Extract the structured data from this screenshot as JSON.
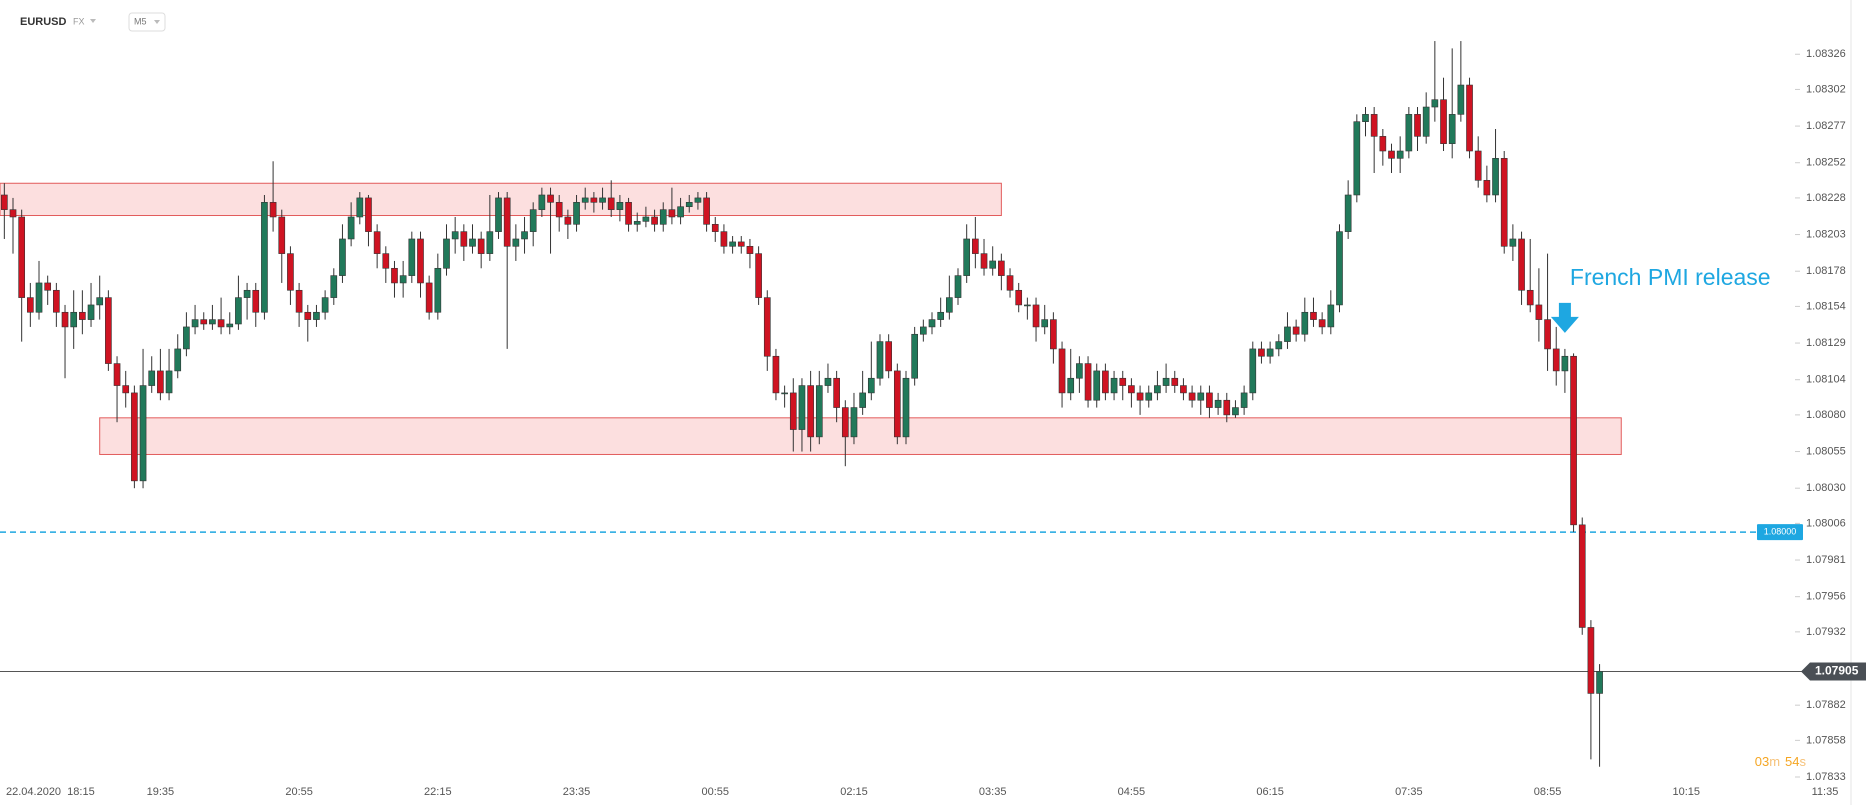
{
  "chart_data": {
    "type": "candlestick",
    "symbol": "EURUSD",
    "market": "FX",
    "interval": "M5",
    "annotation": "French PMI release",
    "annotation_index": 180,
    "countdown": [
      "03",
      "m",
      "54",
      "s"
    ],
    "up_color": "#21795a",
    "down_color": "#cf1322",
    "ylim": [
      1.07833,
      1.08363
    ],
    "xlim": [
      -0.5,
      213
    ],
    "yticks": [
      1.08326,
      1.08302,
      1.08277,
      1.08252,
      1.08228,
      1.08203,
      1.08178,
      1.08154,
      1.08129,
      1.08104,
      {
        "value": 1.0808,
        "label": "1.08080"
      },
      1.08055,
      {
        "value": 1.0803,
        "label": "1.08030"
      },
      1.08006,
      1.07981,
      1.07956,
      1.07932,
      1.07882,
      1.07858,
      1.07833
    ],
    "xticks": [
      {
        "value": 2,
        "label": "22.04.2020  18:15"
      },
      {
        "value": 18,
        "label": "19:35"
      },
      {
        "value": 34,
        "label": "20:55"
      },
      {
        "value": 50,
        "label": "22:15"
      },
      {
        "value": 66,
        "label": "23:35"
      },
      {
        "value": 82,
        "label": "00:55"
      },
      {
        "value": 98,
        "label": "02:15"
      },
      {
        "value": 114,
        "label": "03:35"
      },
      {
        "value": 130,
        "label": "04:55"
      },
      {
        "value": 146,
        "label": "06:15"
      },
      {
        "value": 162,
        "label": "07:35"
      },
      {
        "value": 178,
        "label": "08:55"
      },
      {
        "value": 194,
        "label": "10:15"
      },
      {
        "value": 210,
        "label": "11:35"
      }
    ],
    "price_line": {
      "value": 1.07905,
      "label": "1.07905"
    },
    "level_line": {
      "value": 1.08,
      "label": "1.08000"
    },
    "zones": [
      {
        "x": [
          -0.5,
          115
        ],
        "y": [
          1.08216,
          1.08238
        ]
      },
      {
        "x": [
          11,
          186.5
        ],
        "y": [
          1.08053,
          1.08078
        ]
      }
    ],
    "open": [
      1.0823,
      1.0822,
      1.08215,
      1.0816,
      1.0815,
      1.0817,
      1.08165,
      1.0815,
      1.0814,
      1.0815,
      1.08145,
      1.08155,
      1.0816,
      1.08115,
      1.081,
      1.08095,
      1.08035,
      1.081,
      1.0811,
      1.08095,
      1.0811,
      1.08125,
      1.0814,
      1.08145,
      1.08142,
      1.08145,
      1.0814,
      1.08142,
      1.0816,
      1.08165,
      1.0815,
      1.08225,
      1.08215,
      1.0819,
      1.08165,
      1.0815,
      1.08145,
      1.0815,
      1.0816,
      1.08175,
      1.082,
      1.08215,
      1.08228,
      1.08205,
      1.0819,
      1.0818,
      1.0817,
      1.08175,
      1.082,
      1.0817,
      1.0815,
      1.0818,
      1.082,
      1.08205,
      1.08195,
      1.082,
      1.0819,
      1.08205,
      1.08228,
      1.08195,
      1.082,
      1.08205,
      1.0822,
      1.0823,
      1.08225,
      1.08215,
      1.0821,
      1.08225,
      1.08228,
      1.08225,
      1.08228,
      1.0822,
      1.08225,
      1.0821,
      1.08212,
      1.08215,
      1.0821,
      1.0822,
      1.08215,
      1.08222,
      1.08225,
      1.08228,
      1.0821,
      1.08205,
      1.08195,
      1.08198,
      1.08195,
      1.0819,
      1.0816,
      1.0812,
      1.08095,
      1.08095,
      1.0807,
      1.081,
      1.08065,
      1.081,
      1.08105,
      1.08085,
      1.08065,
      1.08085,
      1.08095,
      1.08105,
      1.0813,
      1.0811,
      1.08065,
      1.08105,
      1.08135,
      1.0814,
      1.08145,
      1.0815,
      1.0816,
      1.08175,
      1.082,
      1.0819,
      1.0818,
      1.08185,
      1.08175,
      1.08165,
      1.08155,
      1.08155,
      1.0814,
      1.08145,
      1.08125,
      1.08095,
      1.08105,
      1.08115,
      1.0809,
      1.0811,
      1.08095,
      1.08105,
      1.081,
      1.08095,
      1.0809,
      1.08095,
      1.081,
      1.08105,
      1.081,
      1.08095,
      1.0809,
      1.08095,
      1.08085,
      1.0809,
      1.0808,
      1.08085,
      1.08095,
      1.08125,
      1.0812,
      1.08125,
      1.0813,
      1.0814,
      1.08135,
      1.0815,
      1.08145,
      1.0814,
      1.08155,
      1.08205,
      1.0823,
      1.0828,
      1.08285,
      1.0827,
      1.0826,
      1.08255,
      1.0826,
      1.08285,
      1.0827,
      1.0829,
      1.08295,
      1.08265,
      1.08285,
      1.08305,
      1.0826,
      1.0824,
      1.0823,
      1.08255,
      1.08195,
      1.082,
      1.08165,
      1.08155,
      1.08145,
      1.08125,
      1.0811,
      1.0812,
      1.08005,
      1.07935,
      1.0789
    ],
    "high": [
      1.08238,
      1.08228,
      1.0822,
      1.0817,
      1.08185,
      1.08175,
      1.0817,
      1.08155,
      1.08165,
      1.08165,
      1.0817,
      1.08175,
      1.08165,
      1.0812,
      1.0811,
      1.081,
      1.08125,
      1.0812,
      1.08125,
      1.08125,
      1.08135,
      1.0815,
      1.08155,
      1.0815,
      1.08155,
      1.0816,
      1.0815,
      1.08175,
      1.0817,
      1.0817,
      1.0823,
      1.08253,
      1.0822,
      1.08195,
      1.0817,
      1.08155,
      1.08155,
      1.08165,
      1.0818,
      1.0821,
      1.08225,
      1.08232,
      1.0823,
      1.0821,
      1.08195,
      1.08185,
      1.08185,
      1.08205,
      1.08205,
      1.08175,
      1.0819,
      1.0821,
      1.08215,
      1.0821,
      1.0821,
      1.08205,
      1.0823,
      1.08232,
      1.08232,
      1.0821,
      1.08215,
      1.08225,
      1.08235,
      1.08235,
      1.0823,
      1.0822,
      1.0823,
      1.08235,
      1.08232,
      1.08235,
      1.0824,
      1.0823,
      1.08228,
      1.08218,
      1.08222,
      1.0822,
      1.08225,
      1.08235,
      1.08228,
      1.0823,
      1.08232,
      1.08232,
      1.08215,
      1.0821,
      1.08202,
      1.08202,
      1.082,
      1.08195,
      1.08165,
      1.08125,
      1.081,
      1.08105,
      1.08105,
      1.0811,
      1.0811,
      1.08115,
      1.0811,
      1.0809,
      1.08095,
      1.0811,
      1.0813,
      1.08135,
      1.08135,
      1.08115,
      1.0811,
      1.0814,
      1.08145,
      1.0815,
      1.0816,
      1.08175,
      1.0818,
      1.0821,
      1.08215,
      1.082,
      1.08195,
      1.0819,
      1.0818,
      1.0817,
      1.0816,
      1.0816,
      1.08155,
      1.0815,
      1.0813,
      1.08125,
      1.0812,
      1.0812,
      1.08115,
      1.08115,
      1.0811,
      1.0811,
      1.08105,
      1.081,
      1.081,
      1.0811,
      1.08115,
      1.0811,
      1.08105,
      1.081,
      1.081,
      1.081,
      1.08095,
      1.08095,
      1.0809,
      1.081,
      1.0813,
      1.0813,
      1.0813,
      1.08135,
      1.0815,
      1.08145,
      1.0816,
      1.0816,
      1.0815,
      1.08165,
      1.0821,
      1.0824,
      1.08285,
      1.0829,
      1.0829,
      1.08275,
      1.08265,
      1.0827,
      1.0829,
      1.0829,
      1.083,
      1.08335,
      1.0831,
      1.0833,
      1.08335,
      1.0831,
      1.0827,
      1.0825,
      1.08275,
      1.0826,
      1.0821,
      1.08205,
      1.082,
      1.0818,
      1.0819,
      1.0814,
      1.08125,
      1.08122,
      1.0801,
      1.0794,
      1.0791
    ],
    "low": [
      1.082,
      1.0819,
      1.0813,
      1.0814,
      1.08145,
      1.08155,
      1.0814,
      1.08105,
      1.08125,
      1.08135,
      1.0814,
      1.08145,
      1.0811,
      1.08075,
      1.08085,
      1.0803,
      1.0803,
      1.08095,
      1.0809,
      1.0809,
      1.08105,
      1.0812,
      1.08135,
      1.08138,
      1.08138,
      1.08135,
      1.08135,
      1.08138,
      1.08145,
      1.0814,
      1.08145,
      1.08205,
      1.0817,
      1.08155,
      1.0814,
      1.0813,
      1.0814,
      1.08145,
      1.08155,
      1.0817,
      1.08195,
      1.0821,
      1.08195,
      1.0818,
      1.0817,
      1.0816,
      1.0816,
      1.0817,
      1.0816,
      1.08145,
      1.08145,
      1.08175,
      1.0819,
      1.08185,
      1.0819,
      1.0818,
      1.08185,
      1.082,
      1.08125,
      1.08185,
      1.0819,
      1.08195,
      1.08215,
      1.0819,
      1.08205,
      1.082,
      1.08205,
      1.0822,
      1.08218,
      1.0822,
      1.08215,
      1.08212,
      1.08205,
      1.08205,
      1.08208,
      1.08205,
      1.08205,
      1.0821,
      1.0821,
      1.08218,
      1.0822,
      1.08205,
      1.08198,
      1.0819,
      1.0819,
      1.0819,
      1.0818,
      1.08155,
      1.0811,
      1.0809,
      1.08085,
      1.08055,
      1.08055,
      1.08055,
      1.0806,
      1.08095,
      1.08075,
      1.08045,
      1.0806,
      1.0808,
      1.0809,
      1.081,
      1.08105,
      1.0806,
      1.0806,
      1.081,
      1.0813,
      1.08135,
      1.0814,
      1.08145,
      1.08155,
      1.0817,
      1.0818,
      1.08175,
      1.08175,
      1.08165,
      1.0816,
      1.0815,
      1.08145,
      1.0813,
      1.08135,
      1.08115,
      1.08085,
      1.0809,
      1.08095,
      1.08085,
      1.08085,
      1.0809,
      1.0809,
      1.0809,
      1.08085,
      1.0808,
      1.08085,
      1.0809,
      1.08095,
      1.08095,
      1.0809,
      1.08085,
      1.0808,
      1.08078,
      1.0808,
      1.08075,
      1.08078,
      1.0808,
      1.0809,
      1.08115,
      1.08115,
      1.0812,
      1.08125,
      1.0813,
      1.0813,
      1.0814,
      1.08135,
      1.08135,
      1.0815,
      1.082,
      1.08225,
      1.0827,
      1.08245,
      1.0825,
      1.08245,
      1.08245,
      1.08255,
      1.0826,
      1.08265,
      1.0828,
      1.0826,
      1.08255,
      1.0828,
      1.08255,
      1.08235,
      1.08225,
      1.08225,
      1.0819,
      1.08185,
      1.08155,
      1.0815,
      1.0813,
      1.0811,
      1.081,
      1.08095,
      1.08,
      1.0793,
      1.07845,
      1.0784
    ],
    "close": [
      1.0822,
      1.08215,
      1.0816,
      1.0815,
      1.0817,
      1.08165,
      1.0815,
      1.0814,
      1.0815,
      1.08145,
      1.08155,
      1.0816,
      1.08115,
      1.081,
      1.08095,
      1.08035,
      1.081,
      1.0811,
      1.08095,
      1.0811,
      1.08125,
      1.0814,
      1.08145,
      1.08142,
      1.08145,
      1.0814,
      1.08142,
      1.0816,
      1.08165,
      1.0815,
      1.08225,
      1.08215,
      1.0819,
      1.08165,
      1.0815,
      1.08145,
      1.0815,
      1.0816,
      1.08175,
      1.082,
      1.08215,
      1.08228,
      1.08205,
      1.0819,
      1.0818,
      1.0817,
      1.08175,
      1.082,
      1.0817,
      1.0815,
      1.0818,
      1.082,
      1.08205,
      1.08195,
      1.082,
      1.0819,
      1.08205,
      1.08228,
      1.08195,
      1.082,
      1.08205,
      1.0822,
      1.0823,
      1.08225,
      1.08215,
      1.0821,
      1.08225,
      1.08228,
      1.08225,
      1.08228,
      1.0822,
      1.08225,
      1.0821,
      1.08212,
      1.08215,
      1.0821,
      1.0822,
      1.08215,
      1.08222,
      1.08225,
      1.08228,
      1.0821,
      1.08205,
      1.08195,
      1.08198,
      1.08195,
      1.0819,
      1.0816,
      1.0812,
      1.08095,
      1.08095,
      1.0807,
      1.081,
      1.08065,
      1.081,
      1.08105,
      1.08085,
      1.08065,
      1.08085,
      1.08095,
      1.08105,
      1.0813,
      1.0811,
      1.08065,
      1.08105,
      1.08135,
      1.0814,
      1.08145,
      1.0815,
      1.0816,
      1.08175,
      1.082,
      1.0819,
      1.0818,
      1.08185,
      1.08175,
      1.08165,
      1.08155,
      1.08155,
      1.0814,
      1.08145,
      1.08125,
      1.08095,
      1.08105,
      1.08115,
      1.0809,
      1.0811,
      1.08095,
      1.08105,
      1.081,
      1.08095,
      1.0809,
      1.08095,
      1.081,
      1.08105,
      1.081,
      1.08095,
      1.0809,
      1.08095,
      1.08085,
      1.0809,
      1.0808,
      1.08085,
      1.08095,
      1.08125,
      1.0812,
      1.08125,
      1.0813,
      1.0814,
      1.08135,
      1.0815,
      1.08145,
      1.0814,
      1.08155,
      1.08205,
      1.0823,
      1.0828,
      1.08285,
      1.0827,
      1.0826,
      1.08255,
      1.0826,
      1.08285,
      1.0827,
      1.0829,
      1.08295,
      1.08265,
      1.08285,
      1.08305,
      1.0826,
      1.0824,
      1.0823,
      1.08255,
      1.08195,
      1.082,
      1.08165,
      1.08155,
      1.08145,
      1.08125,
      1.0811,
      1.0812,
      1.08005,
      1.07935,
      1.0789,
      1.07905
    ]
  }
}
